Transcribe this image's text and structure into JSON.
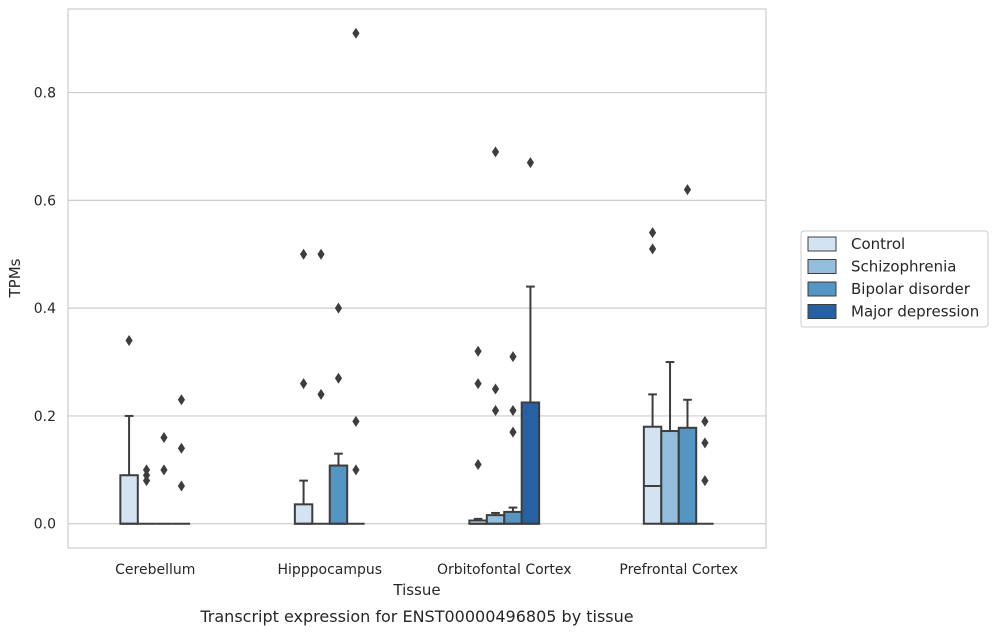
{
  "chart_data": {
    "type": "box",
    "xlabel": "Tissue",
    "ylabel": "TPMs",
    "caption": "Transcript expression for ENST00000496805 by tissue",
    "categories": [
      "Cerebellum",
      "Hipppocampus",
      "Orbitofontal Cortex",
      "Prefrontal Cortex"
    ],
    "ylim": [
      -0.045,
      0.955
    ],
    "yticks": [
      0.0,
      0.2,
      0.4,
      0.6,
      0.8
    ],
    "ytick_labels": [
      "0.0",
      "0.2",
      "0.4",
      "0.6",
      "0.8"
    ],
    "grid": "horizontal",
    "legend_position": "right",
    "colors": [
      "#d3e3f2",
      "#93bfdc",
      "#5595c4",
      "#2761a3"
    ],
    "series": [
      {
        "name": "Control",
        "boxes": [
          {
            "q1": 0.0,
            "median": 0.0,
            "q3": 0.09,
            "whisker_low": 0.0,
            "whisker_high": 0.2,
            "outliers": [
              0.34
            ]
          },
          {
            "q1": 0.0,
            "median": 0.0,
            "q3": 0.036,
            "whisker_low": 0.0,
            "whisker_high": 0.08,
            "outliers": [
              0.26,
              0.5
            ]
          },
          {
            "q1": 0.0,
            "median": 0.0,
            "q3": 0.006,
            "whisker_low": 0.0,
            "whisker_high": 0.009,
            "outliers": [
              0.11,
              0.26,
              0.32
            ]
          },
          {
            "q1": 0.0,
            "median": 0.07,
            "q3": 0.18,
            "whisker_low": 0.0,
            "whisker_high": 0.24,
            "outliers": [
              0.51,
              0.54
            ]
          }
        ]
      },
      {
        "name": "Schizophrenia",
        "boxes": [
          {
            "q1": 0.0,
            "median": 0.0,
            "q3": 0.0,
            "whisker_low": 0.0,
            "whisker_high": 0.0,
            "outliers": [
              0.08,
              0.09,
              0.1
            ]
          },
          {
            "q1": 0.0,
            "median": 0.0,
            "q3": 0.0,
            "whisker_low": 0.0,
            "whisker_high": 0.0,
            "outliers": [
              0.24,
              0.5
            ]
          },
          {
            "q1": 0.0,
            "median": 0.0,
            "q3": 0.016,
            "whisker_low": 0.0,
            "whisker_high": 0.02,
            "outliers": [
              0.21,
              0.25,
              0.69
            ]
          },
          {
            "q1": 0.0,
            "median": 0.0,
            "q3": 0.172,
            "whisker_low": 0.0,
            "whisker_high": 0.3,
            "outliers": []
          }
        ]
      },
      {
        "name": "Bipolar disorder",
        "boxes": [
          {
            "q1": 0.0,
            "median": 0.0,
            "q3": 0.0,
            "whisker_low": 0.0,
            "whisker_high": 0.0,
            "outliers": [
              0.1,
              0.16
            ]
          },
          {
            "q1": 0.0,
            "median": 0.0,
            "q3": 0.108,
            "whisker_low": 0.0,
            "whisker_high": 0.13,
            "outliers": [
              0.27,
              0.4
            ]
          },
          {
            "q1": 0.0,
            "median": 0.0,
            "q3": 0.022,
            "whisker_low": 0.0,
            "whisker_high": 0.03,
            "outliers": [
              0.17,
              0.21,
              0.31
            ]
          },
          {
            "q1": 0.0,
            "median": 0.0,
            "q3": 0.178,
            "whisker_low": 0.0,
            "whisker_high": 0.23,
            "outliers": [
              0.62
            ]
          }
        ]
      },
      {
        "name": "Major depression",
        "boxes": [
          {
            "q1": 0.0,
            "median": 0.0,
            "q3": 0.0,
            "whisker_low": 0.0,
            "whisker_high": 0.0,
            "outliers": [
              0.07,
              0.14,
              0.23
            ]
          },
          {
            "q1": 0.0,
            "median": 0.0,
            "q3": 0.0,
            "whisker_low": 0.0,
            "whisker_high": 0.0,
            "outliers": [
              0.1,
              0.19,
              0.91
            ]
          },
          {
            "q1": 0.0,
            "median": 0.0,
            "q3": 0.225,
            "whisker_low": 0.0,
            "whisker_high": 0.44,
            "outliers": [
              0.67
            ]
          },
          {
            "q1": 0.0,
            "median": 0.0,
            "q3": 0.0,
            "whisker_low": 0.0,
            "whisker_high": 0.0,
            "outliers": [
              0.08,
              0.15,
              0.19
            ]
          }
        ]
      }
    ]
  }
}
